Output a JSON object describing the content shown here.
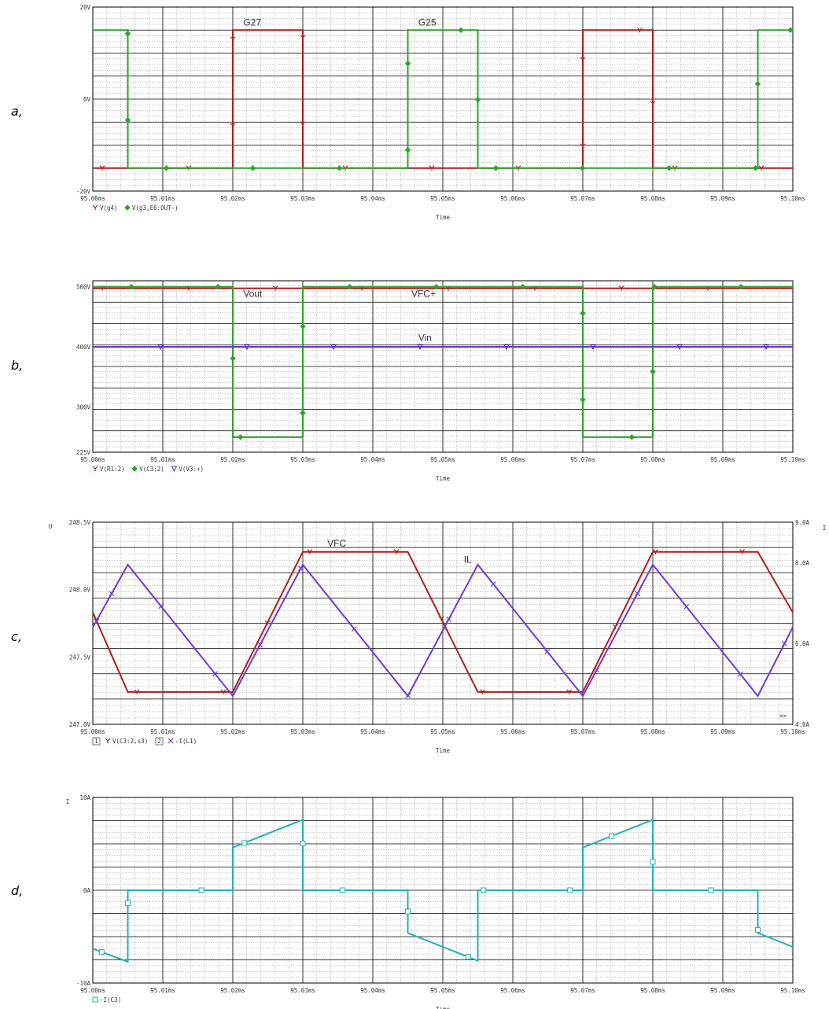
{
  "chart_data": [
    {
      "type": "line",
      "panel_label": "a,",
      "xlabel": "Time",
      "x_ticks": [
        "95.00ms",
        "95.01ms",
        "95.02ms",
        "95.03ms",
        "95.04ms",
        "95.05ms",
        "95.06ms",
        "95.07ms",
        "95.08ms",
        "95.09ms",
        "95.10ms"
      ],
      "y_ticks": [
        "20V",
        "0V",
        "-20V"
      ],
      "xlim": [
        95.0,
        95.1
      ],
      "ylim": [
        -20,
        20
      ],
      "grid": true,
      "series": [
        {
          "name": "V(g4)",
          "color": "#b01c1c",
          "marker": "cross",
          "x": [
            95.0,
            95.02,
            95.02,
            95.03,
            95.03,
            95.07,
            95.07,
            95.08,
            95.08,
            95.1
          ],
          "y": [
            -15,
            -15,
            15,
            15,
            -15,
            -15,
            15,
            15,
            -15,
            -15
          ]
        },
        {
          "name": "V(g3,E6:OUT-)",
          "color": "#2aa52a",
          "marker": "diamond",
          "x": [
            95.0,
            95.005,
            95.005,
            95.045,
            95.045,
            95.055,
            95.055,
            95.095,
            95.095,
            95.1
          ],
          "y": [
            15,
            15,
            -15,
            -15,
            15,
            15,
            -15,
            -15,
            15,
            15
          ]
        }
      ],
      "annotations": [
        {
          "text": "G27",
          "color": "#d42020",
          "x": 95.0215,
          "y": 16
        },
        {
          "text": "G25",
          "color": "#22cc22",
          "x": 95.0465,
          "y": 16
        }
      ]
    },
    {
      "type": "line",
      "panel_label": "b,",
      "xlabel": "Time",
      "x_ticks": [
        "95.00ms",
        "95.01ms",
        "95.02ms",
        "95.03ms",
        "95.04ms",
        "95.05ms",
        "95.06ms",
        "95.07ms",
        "95.08ms",
        "95.09ms",
        "95.10ms"
      ],
      "y_ticks": [
        "500V",
        "400V",
        "300V",
        "225V"
      ],
      "xlim": [
        95.0,
        95.1
      ],
      "ylim": [
        225,
        510
      ],
      "grid": true,
      "series": [
        {
          "name": "V(R1:2)",
          "color": "#b01c1c",
          "marker": "cross",
          "x": [
            95.0,
            95.1
          ],
          "y": [
            497.5,
            497.5
          ]
        },
        {
          "name": "V(C3:2)",
          "color": "#2aa52a",
          "marker": "diamond",
          "x": [
            95.0,
            95.02,
            95.02,
            95.03,
            95.03,
            95.07,
            95.07,
            95.08,
            95.08,
            95.1
          ],
          "y": [
            500,
            500,
            250,
            250,
            500,
            500,
            250,
            250,
            500,
            500
          ]
        },
        {
          "name": "V(V3:+)",
          "color": "#5a2ad8",
          "marker": "triangle-down",
          "x": [
            95.0,
            95.1
          ],
          "y": [
            400,
            400
          ]
        }
      ],
      "annotations": [
        {
          "text": "Vout",
          "color": "#d42020",
          "x": 95.0215,
          "y": 483
        },
        {
          "text": "VFC+",
          "color": "#22cc22",
          "x": 95.0455,
          "y": 483
        },
        {
          "text": "Vin",
          "color": "#3030e0",
          "x": 95.0465,
          "y": 410
        }
      ]
    },
    {
      "type": "line",
      "panel_label": "c,",
      "xlabel": "Time",
      "x_ticks": [
        "95.00ms",
        "95.01ms",
        "95.02ms",
        "95.03ms",
        "95.04ms",
        "95.05ms",
        "95.06ms",
        "95.07ms",
        "95.08ms",
        "95.09ms",
        "95.10ms"
      ],
      "y_ticks": [
        "248.5V",
        "248.0V",
        "247.5V",
        "247.0V"
      ],
      "y2_ticks": [
        "9.0A",
        "8.0A",
        "6.0A",
        "4.0A"
      ],
      "y_axis_title": "U",
      "y2_axis_title": "I",
      "axis_markers": [
        "1",
        "2"
      ],
      "overflow_marker": ">>",
      "xlim": [
        95.0,
        95.1
      ],
      "ylim": [
        247.0,
        248.5
      ],
      "y2lim": [
        4.0,
        9.0
      ],
      "grid": true,
      "series": [
        {
          "name": "V(C3:2,s3)",
          "color": "#b01c1c",
          "marker": "cross",
          "axis": "left",
          "x": [
            95.0,
            95.005,
            95.02,
            95.03,
            95.045,
            95.055,
            95.07,
            95.08,
            95.095,
            95.1
          ],
          "y": [
            247.83,
            247.24,
            247.24,
            248.28,
            248.28,
            247.24,
            247.24,
            248.28,
            248.28,
            247.83
          ]
        },
        {
          "name": "-I(L1)",
          "color": "#6a3ad8",
          "marker": "x",
          "axis": "right",
          "x": [
            95.0,
            95.005,
            95.02,
            95.03,
            95.045,
            95.055,
            95.07,
            95.08,
            95.095,
            95.1
          ],
          "y": [
            6.4,
            7.95,
            4.7,
            7.95,
            4.7,
            7.95,
            4.7,
            7.95,
            4.7,
            6.4
          ]
        }
      ],
      "annotations": [
        {
          "text": "VFC",
          "color": "#d42020",
          "x": 95.0335,
          "y": 248.32
        },
        {
          "text": "IL",
          "color": "#3030e0",
          "x": 95.053,
          "y": 248.2
        }
      ]
    },
    {
      "type": "line",
      "panel_label": "d,",
      "xlabel": "Time",
      "x_ticks": [
        "95.00ms",
        "95.01ms",
        "95.02ms",
        "95.03ms",
        "95.04ms",
        "95.05ms",
        "95.06ms",
        "95.07ms",
        "95.08ms",
        "95.09ms",
        "95.10ms"
      ],
      "y_ticks": [
        "10A",
        "0A",
        "-10A"
      ],
      "y_axis_title": "I",
      "xlim": [
        95.0,
        95.1
      ],
      "ylim": [
        -10,
        10
      ],
      "grid": true,
      "series": [
        {
          "name": "-I(C3)",
          "color": "#22b0b8",
          "marker": "square",
          "x": [
            95.0,
            95.005,
            95.005,
            95.02,
            95.02,
            95.03,
            95.03,
            95.045,
            95.045,
            95.055,
            95.055,
            95.07,
            95.07,
            95.08,
            95.08,
            95.095,
            95.095,
            95.1
          ],
          "y": [
            -6.3,
            -7.7,
            0,
            0,
            4.6,
            7.6,
            0,
            0,
            -4.6,
            -7.6,
            0,
            0,
            4.6,
            7.6,
            0,
            0,
            -4.6,
            -6.1
          ]
        }
      ]
    }
  ]
}
